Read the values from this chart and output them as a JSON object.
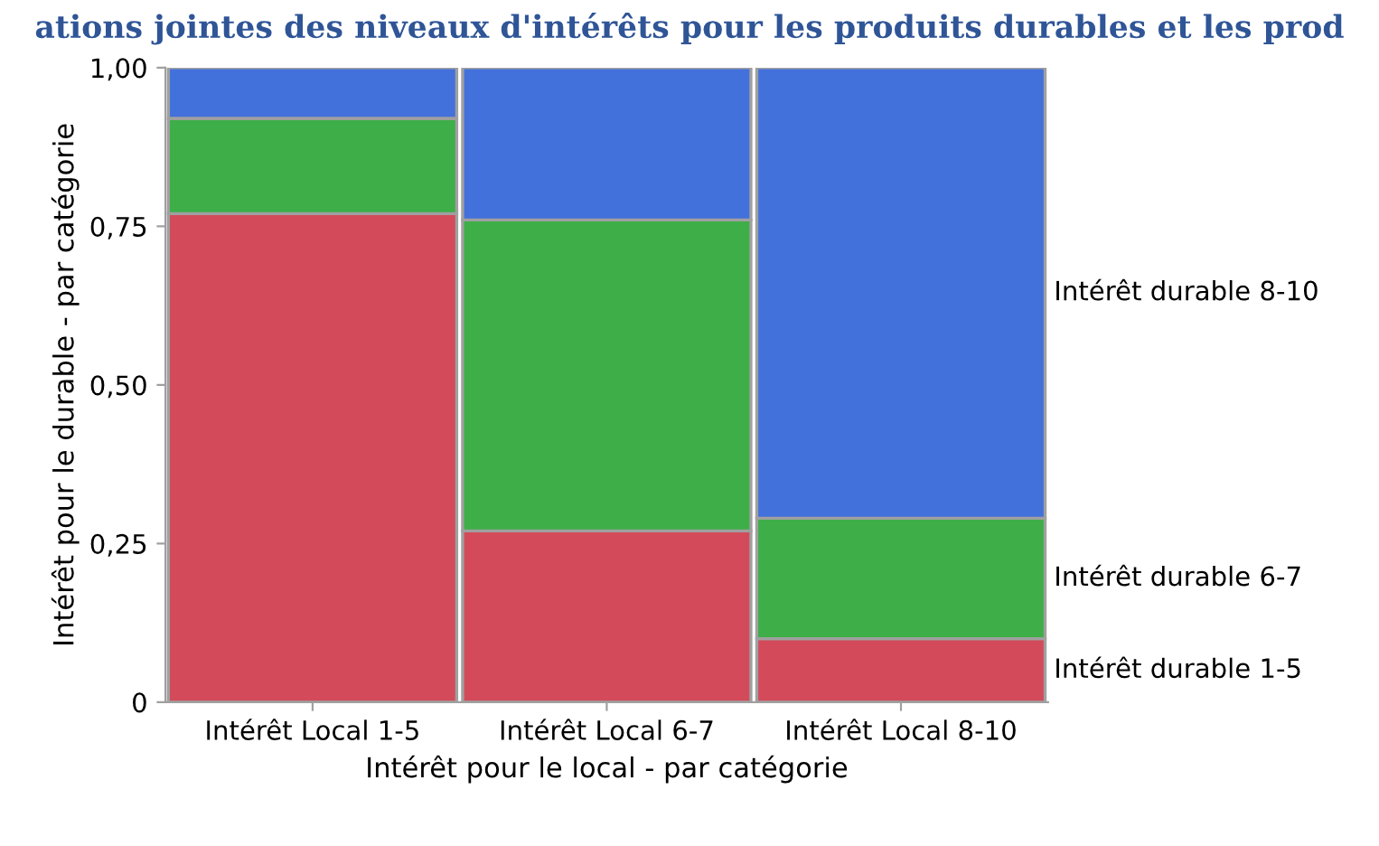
{
  "chart_data": {
    "type": "bar",
    "stacked": true,
    "title": "ations jointes des niveaux d'intérêts pour les produits durables et les prod",
    "xlabel": "Intérêt pour le local - par catégorie",
    "ylabel": "Intérêt pour le durable - par catégorie",
    "categories": [
      "Intérêt Local 1-5",
      "Intérêt Local 6-7",
      "Intérêt Local 8-10"
    ],
    "series": [
      {
        "name": "Intérêt durable 1-5",
        "color": "#d34b5a",
        "values": [
          0.77,
          0.27,
          0.1
        ]
      },
      {
        "name": "Intérêt durable 6-7",
        "color": "#3dae48",
        "values": [
          0.15,
          0.49,
          0.19
        ]
      },
      {
        "name": "Intérêt durable 8-10",
        "color": "#4371db",
        "values": [
          0.08,
          0.24,
          0.71
        ]
      }
    ],
    "ylim": [
      0,
      1
    ],
    "yticks": [
      0,
      {
        "value": 0.25,
        "label": "0,25"
      },
      {
        "value": 0.5,
        "label": "0,50"
      },
      {
        "value": 0.75,
        "label": "0,75"
      },
      {
        "value": 1,
        "label": "1,00"
      }
    ],
    "grid": false
  }
}
